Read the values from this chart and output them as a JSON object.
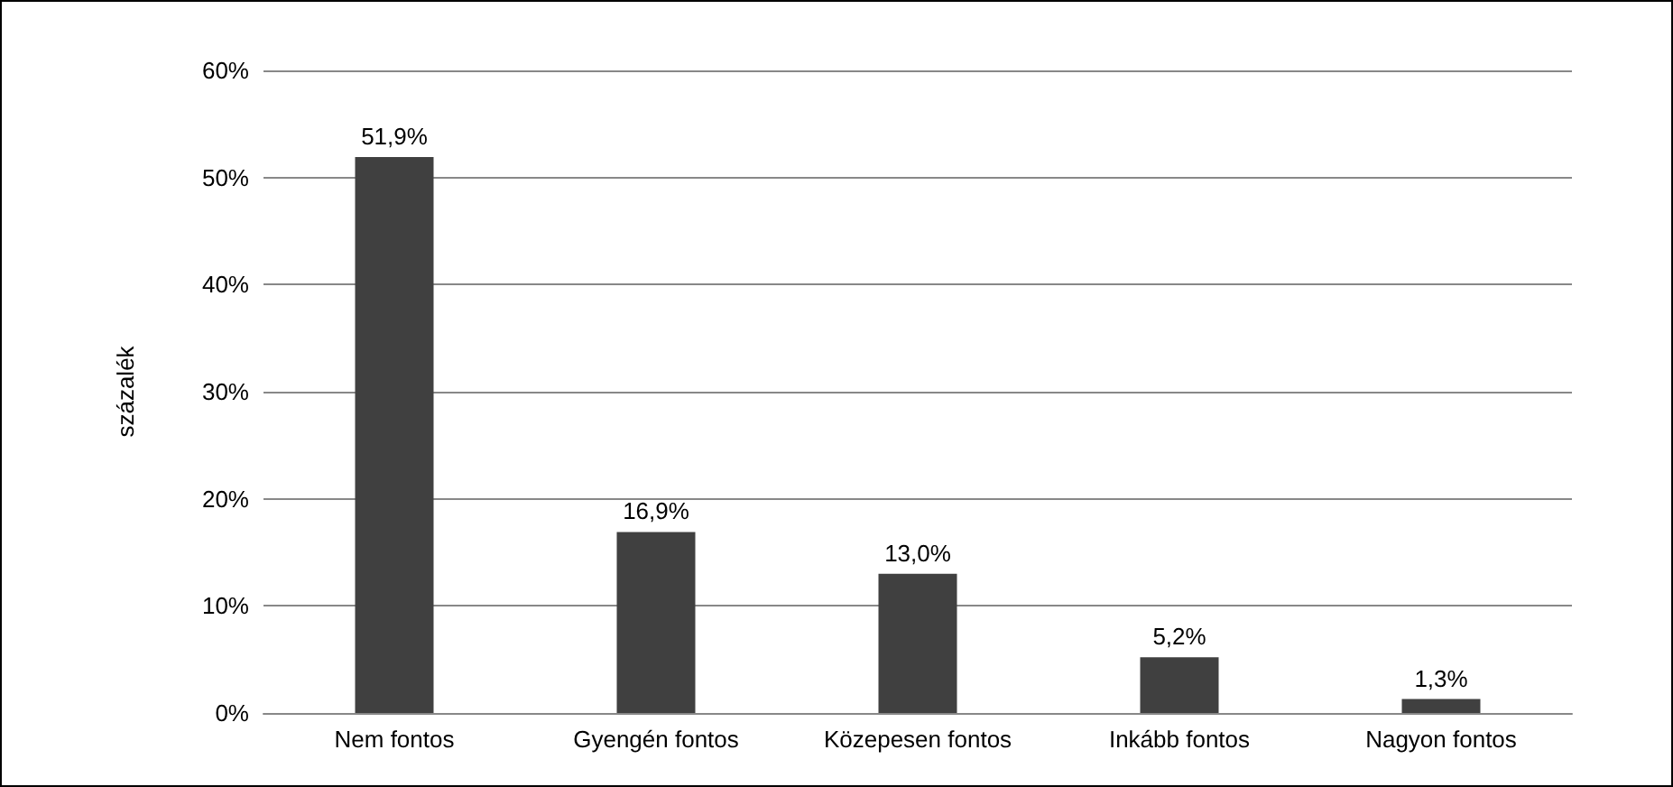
{
  "chart_data": {
    "type": "bar",
    "ylabel": "százalék",
    "categories": [
      "Nem fontos",
      "Gyengén fontos",
      "Közepesen fontos",
      "Inkább fontos",
      "Nagyon fontos"
    ],
    "values": [
      51.9,
      16.9,
      13.0,
      5.2,
      1.3
    ],
    "value_labels": [
      "51,9%",
      "16,9%",
      "13,0%",
      "5,2%",
      "1,3%"
    ],
    "color": "#404040",
    "ylim": [
      0,
      60
    ],
    "yticks": [
      {
        "value": 0,
        "label": "0%"
      },
      {
        "value": 10,
        "label": "10%"
      },
      {
        "value": 20,
        "label": "20%"
      },
      {
        "value": 30,
        "label": "30%"
      },
      {
        "value": 40,
        "label": "40%"
      },
      {
        "value": 50,
        "label": "50%"
      },
      {
        "value": 60,
        "label": "60%"
      }
    ],
    "grid": "y"
  }
}
